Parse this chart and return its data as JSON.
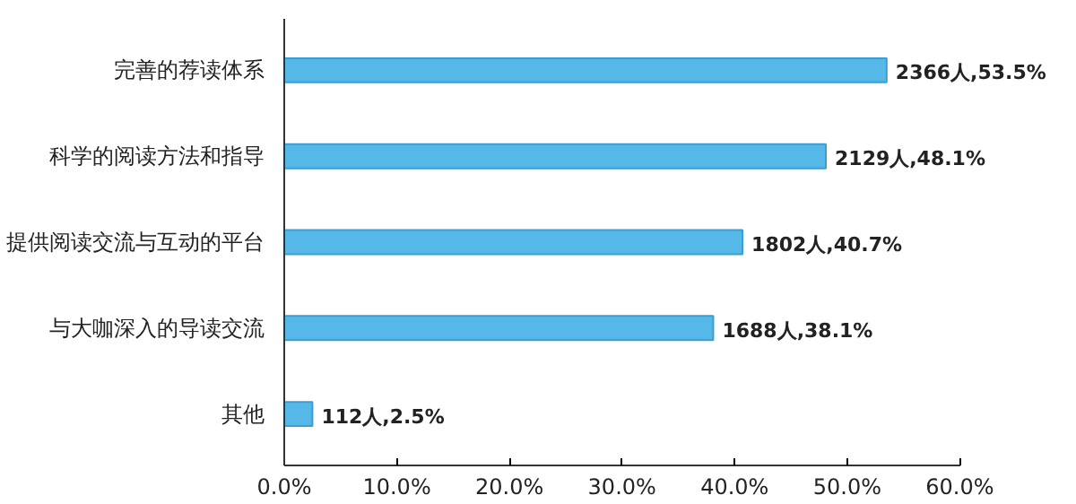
{
  "chart_data": {
    "type": "bar",
    "orientation": "horizontal",
    "categories": [
      "完善的荐读体系",
      "科学的阅读方法和指导",
      "提供阅读交流与互动的平台",
      "与大咖深入的导读交流",
      "其他"
    ],
    "values": [
      53.5,
      48.1,
      40.7,
      38.1,
      2.5
    ],
    "value_labels": [
      "2366人,53.5%",
      "2129人,48.1%",
      "1802人,40.7%",
      "1688人,38.1%",
      "112人,2.5%"
    ],
    "color": "#55b8e8",
    "xlim": [
      0,
      60
    ],
    "xticks": [
      {
        "value": 0,
        "label": "0.0%"
      },
      {
        "value": 10,
        "label": "10.0%"
      },
      {
        "value": 20,
        "label": "20.0%"
      },
      {
        "value": 30,
        "label": "30.0%"
      },
      {
        "value": 40,
        "label": "40.0%"
      },
      {
        "value": 50,
        "label": "50.0%"
      },
      {
        "value": 60,
        "label": "60.0%"
      }
    ],
    "grid": false
  }
}
